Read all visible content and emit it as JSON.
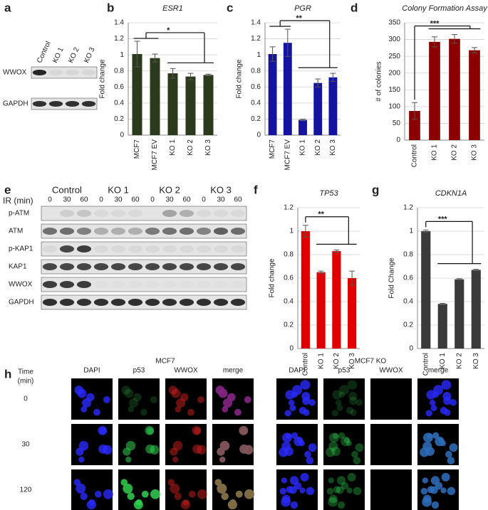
{
  "chart_data": [
    {
      "type": "bar",
      "label": "b",
      "title": "ESR1",
      "y_label": "Fold change",
      "categories": [
        "MCF7",
        "MCF7 EV",
        "KO 1",
        "KO 2",
        "KO 3"
      ],
      "values": [
        1.01,
        0.96,
        0.77,
        0.73,
        0.75
      ],
      "errors": [
        0.16,
        0.05,
        0.06,
        0.04,
        0.01
      ],
      "color": "#2b3a1c",
      "ylim": [
        0,
        1.4
      ],
      "yticks": [
        0,
        0.2,
        0.4,
        0.6,
        0.8,
        1,
        1.2,
        1.4
      ],
      "grid": true,
      "annotation": "*"
    },
    {
      "type": "bar",
      "label": "c",
      "title": "PGR",
      "y_label": "Fold change",
      "categories": [
        "MCF7",
        "MCF7 EV",
        "KO 1",
        "KO 2",
        "KO 3"
      ],
      "values": [
        1.01,
        1.15,
        0.19,
        0.65,
        0.72
      ],
      "errors": [
        0.09,
        0.17,
        0.01,
        0.05,
        0.05
      ],
      "color": "#1414a0",
      "ylim": [
        0,
        1.4
      ],
      "yticks": [
        0,
        0.2,
        0.4,
        0.6,
        0.8,
        1,
        1.2,
        1.4
      ],
      "grid": true,
      "annotation": "**"
    },
    {
      "type": "bar",
      "label": "d",
      "title": "Colony Formation Assay",
      "y_label": "# of colonies",
      "categories": [
        "Control",
        "KO 1",
        "KO 2",
        "KO 3"
      ],
      "values": [
        87,
        293,
        302,
        268
      ],
      "errors": [
        25,
        15,
        13,
        8
      ],
      "color": "#8b0000",
      "ylim": [
        0,
        350
      ],
      "yticks": [
        0,
        50,
        100,
        150,
        200,
        250,
        300,
        350
      ],
      "grid": true,
      "annotation": "***"
    },
    {
      "type": "bar",
      "label": "f",
      "title": "TP53",
      "y_label": "Fold change",
      "categories": [
        "Control",
        "KO 1",
        "KO 2",
        "KO 3"
      ],
      "values": [
        1.0,
        0.65,
        0.83,
        0.6
      ],
      "errors": [
        0.05,
        0.01,
        0.01,
        0.06
      ],
      "color": "#e00000",
      "ylim": [
        0,
        1.2
      ],
      "yticks": [
        0,
        0.2,
        0.4,
        0.6,
        0.8,
        1,
        1.2
      ],
      "grid": true,
      "annotation": "**"
    },
    {
      "type": "bar",
      "label": "g",
      "title": "CDKN1A",
      "y_label": "Fold Change",
      "categories": [
        "Control",
        "KO 1",
        "KO 2",
        "KO 3"
      ],
      "values": [
        1.0,
        0.38,
        0.59,
        0.67
      ],
      "errors": [
        0.01,
        0.005,
        0.005,
        0.005
      ],
      "color": "#3a3a3a",
      "ylim": [
        0,
        1.2
      ],
      "yticks": [
        0,
        0.2,
        0.4,
        0.6,
        0.8,
        1,
        1.2
      ],
      "grid": true,
      "annotation": "***"
    }
  ],
  "blot_a": {
    "label": "a",
    "lanes": [
      "Control",
      "KO 1",
      "KO 2",
      "KO 3"
    ],
    "rows": [
      "WWOX",
      "GAPDH"
    ]
  },
  "blot_e": {
    "label": "e",
    "axis_label": "IR (min)",
    "groups": [
      "Control",
      "KO 1",
      "KO 2",
      "KO 3"
    ],
    "times": [
      "0",
      "30",
      "60"
    ],
    "rows": [
      "p-ATM",
      "ATM",
      "p-KAP1",
      "KAP1",
      "WWOX",
      "GAPDH"
    ]
  },
  "microscopy": {
    "label": "h",
    "time_label": [
      "Time",
      "(min)"
    ],
    "times": [
      "0",
      "30",
      "120"
    ],
    "groups": [
      {
        "name": "MCF7",
        "channels": [
          "DAPI",
          "p53",
          "WWOX",
          "merge"
        ]
      },
      {
        "name": "MCF7 KO",
        "channels": [
          "DAPI",
          "p53",
          "WWOX",
          "merge"
        ]
      }
    ],
    "channel_colors": [
      "#2020e0",
      "#20a040",
      "#e02020",
      "#222222"
    ]
  }
}
